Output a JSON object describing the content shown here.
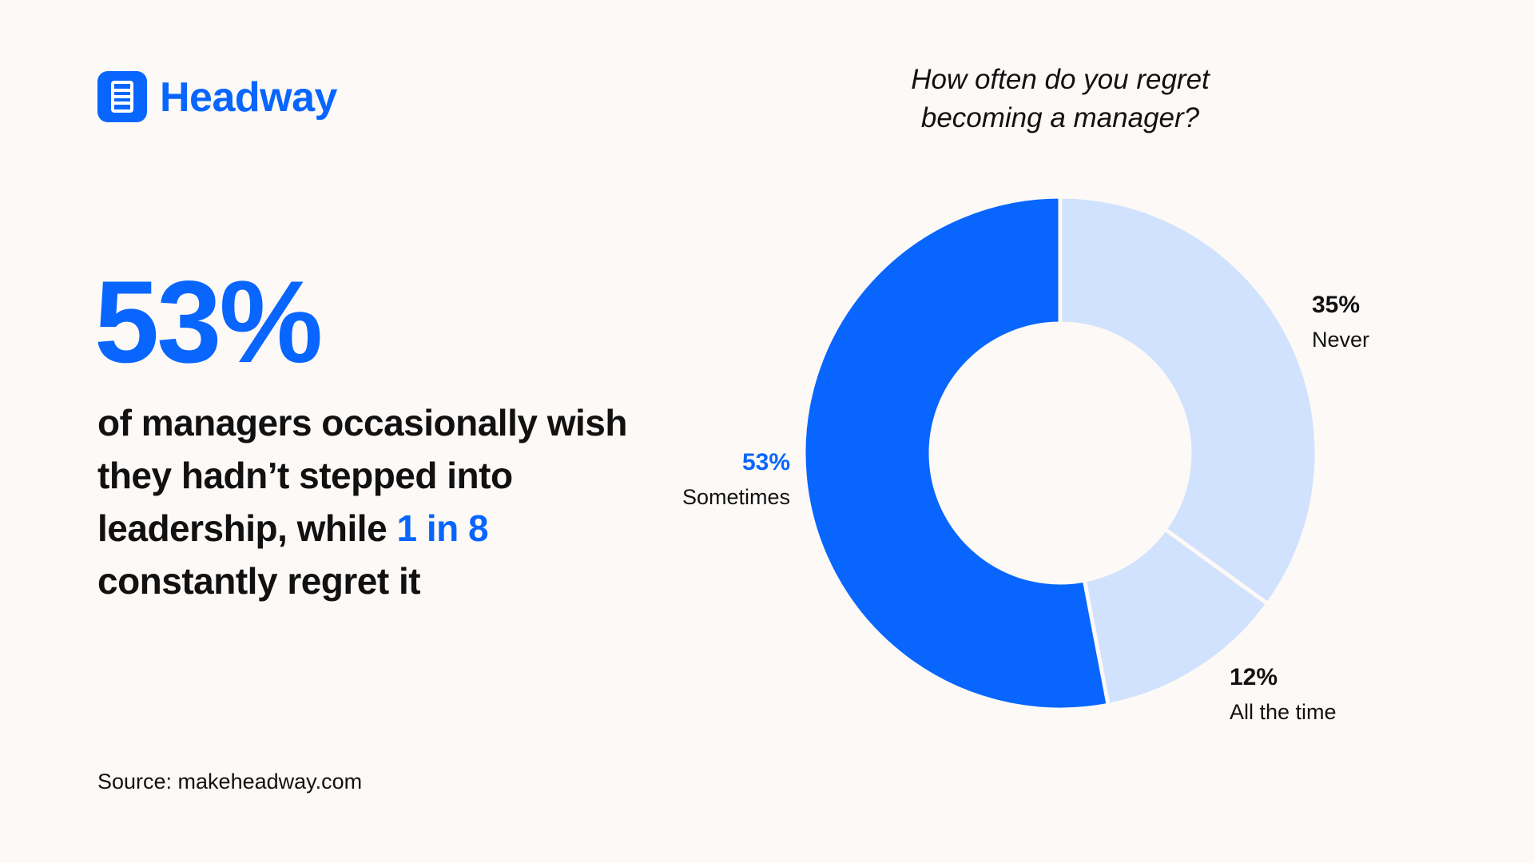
{
  "brand": "Headway",
  "headline": "53%",
  "body": [
    "of managers occasionally wish",
    "they hadn’t stepped into",
    "leadership, while",
    "1 in 8",
    "constantly regret it"
  ],
  "source": "Source: makeheadway.com",
  "chart_data": {
    "type": "donut",
    "title": "How often do you regret becoming a manager?",
    "categories": [
      "Never",
      "All the time",
      "Sometimes"
    ],
    "values": [
      35,
      12,
      53
    ],
    "value_labels": [
      "35%",
      "12%",
      "53%"
    ],
    "colors": [
      "#d0e2fd",
      "#d0e2fd",
      "#0866ff"
    ]
  }
}
